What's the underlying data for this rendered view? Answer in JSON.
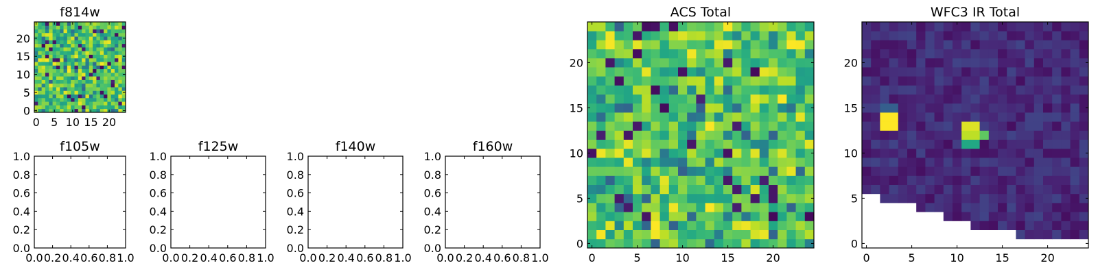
{
  "chart_data": [
    {
      "type": "heatmap",
      "title": "f814w",
      "x_ticks": [
        "0",
        "5",
        "10",
        "15",
        "20"
      ],
      "y_ticks": [
        "0",
        "5",
        "10",
        "15",
        "20"
      ],
      "xlim": [
        -0.5,
        24.5
      ],
      "ylim": [
        -0.5,
        24.5
      ],
      "grid_size": [
        25,
        25
      ],
      "colormap": "viridis",
      "pattern": "noise",
      "seed": 7
    },
    {
      "type": "heatmap",
      "title": "f105w",
      "x_ticks": [
        "0.0",
        "0.2",
        "0.4",
        "0.6",
        "0.8",
        "1.0"
      ],
      "y_ticks": [
        "0.0",
        "0.2",
        "0.4",
        "0.6",
        "0.8",
        "1.0"
      ],
      "xlim": [
        0,
        1
      ],
      "ylim": [
        0,
        1
      ],
      "empty": true
    },
    {
      "type": "heatmap",
      "title": "f125w",
      "x_ticks": [
        "0.0",
        "0.2",
        "0.4",
        "0.6",
        "0.8",
        "1.0"
      ],
      "y_ticks": [
        "0.0",
        "0.2",
        "0.4",
        "0.6",
        "0.8",
        "1.0"
      ],
      "xlim": [
        0,
        1
      ],
      "ylim": [
        0,
        1
      ],
      "empty": true
    },
    {
      "type": "heatmap",
      "title": "f140w",
      "x_ticks": [
        "0.0",
        "0.2",
        "0.4",
        "0.6",
        "0.8",
        "1.0"
      ],
      "y_ticks": [
        "0.0",
        "0.2",
        "0.4",
        "0.6",
        "0.8",
        "1.0"
      ],
      "xlim": [
        0,
        1
      ],
      "ylim": [
        0,
        1
      ],
      "empty": true
    },
    {
      "type": "heatmap",
      "title": "f160w",
      "x_ticks": [
        "0.0",
        "0.2",
        "0.4",
        "0.6",
        "0.8",
        "1.0"
      ],
      "y_ticks": [
        "0.0",
        "0.2",
        "0.4",
        "0.6",
        "0.8",
        "1.0"
      ],
      "xlim": [
        0,
        1
      ],
      "ylim": [
        0,
        1
      ],
      "empty": true
    },
    {
      "type": "heatmap",
      "title": "ACS Total",
      "x_ticks": [
        "0",
        "5",
        "10",
        "15",
        "20"
      ],
      "y_ticks": [
        "0",
        "5",
        "10",
        "15",
        "20"
      ],
      "xlim": [
        -0.5,
        24.5
      ],
      "ylim": [
        -0.5,
        24.5
      ],
      "grid_size": [
        25,
        25
      ],
      "colormap": "viridis",
      "pattern": "noise",
      "seed": 21
    },
    {
      "type": "heatmap",
      "title": "WFC3 IR Total",
      "x_ticks": [
        "0",
        "5",
        "10",
        "15",
        "20"
      ],
      "y_ticks": [
        "0",
        "5",
        "10",
        "15",
        "20"
      ],
      "xlim": [
        -0.5,
        24.5
      ],
      "ylim": [
        -0.5,
        24.5
      ],
      "grid_size": [
        25,
        25
      ],
      "colormap": "viridis",
      "pattern": "dark-with-sources",
      "seed": 5,
      "bright_sources": [
        {
          "cells": [
            [
              2,
              13
            ],
            [
              3,
              13
            ],
            [
              2,
              14
            ],
            [
              3,
              14
            ]
          ],
          "level": 1.0
        },
        {
          "cells": [
            [
              11,
              13
            ],
            [
              12,
              13
            ]
          ],
          "level": 0.95
        },
        {
          "cells": [
            [
              11,
              12
            ],
            [
              12,
              12
            ]
          ],
          "level": 0.9
        },
        {
          "cells": [
            [
              11,
              11
            ],
            [
              12,
              11
            ]
          ],
          "level": 0.6
        },
        {
          "cells": [
            [
              13,
              12
            ]
          ],
          "level": 0.75
        },
        {
          "cells": [
            [
              2,
              15
            ],
            [
              3,
              15
            ]
          ],
          "level": 0.3
        }
      ],
      "blank_region_top_row_by_column": [
        5,
        5,
        4,
        4,
        4,
        4,
        3,
        3,
        3,
        2,
        2,
        2,
        1,
        1,
        1,
        1,
        1,
        0,
        0,
        0,
        0,
        0,
        0,
        0,
        0
      ]
    }
  ]
}
